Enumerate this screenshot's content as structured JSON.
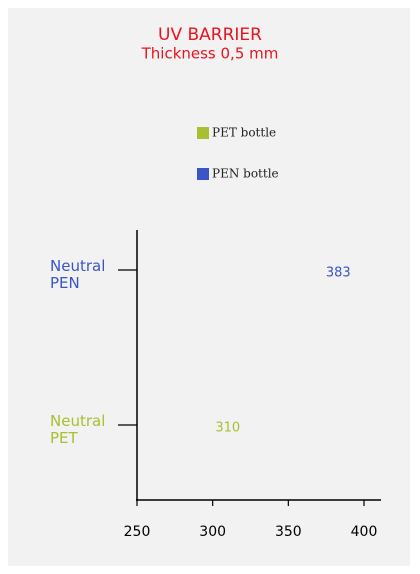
{
  "chart_data": {
    "type": "bar",
    "orientation": "horizontal",
    "title": "UV BARRIER",
    "subtitle": "Thickness 0,5 mm",
    "categories": [
      "Neutral PEN",
      "Neutral PET"
    ],
    "series": [
      {
        "name": "PET bottle",
        "color": "#a8c030",
        "values": [
          null,
          310
        ]
      },
      {
        "name": "PEN bottle",
        "color": "#3a55c8",
        "values": [
          383,
          null
        ]
      }
    ],
    "xlim": [
      250,
      400
    ],
    "xticks": [
      250,
      300,
      350,
      400
    ],
    "title_color": "#e8141e"
  }
}
